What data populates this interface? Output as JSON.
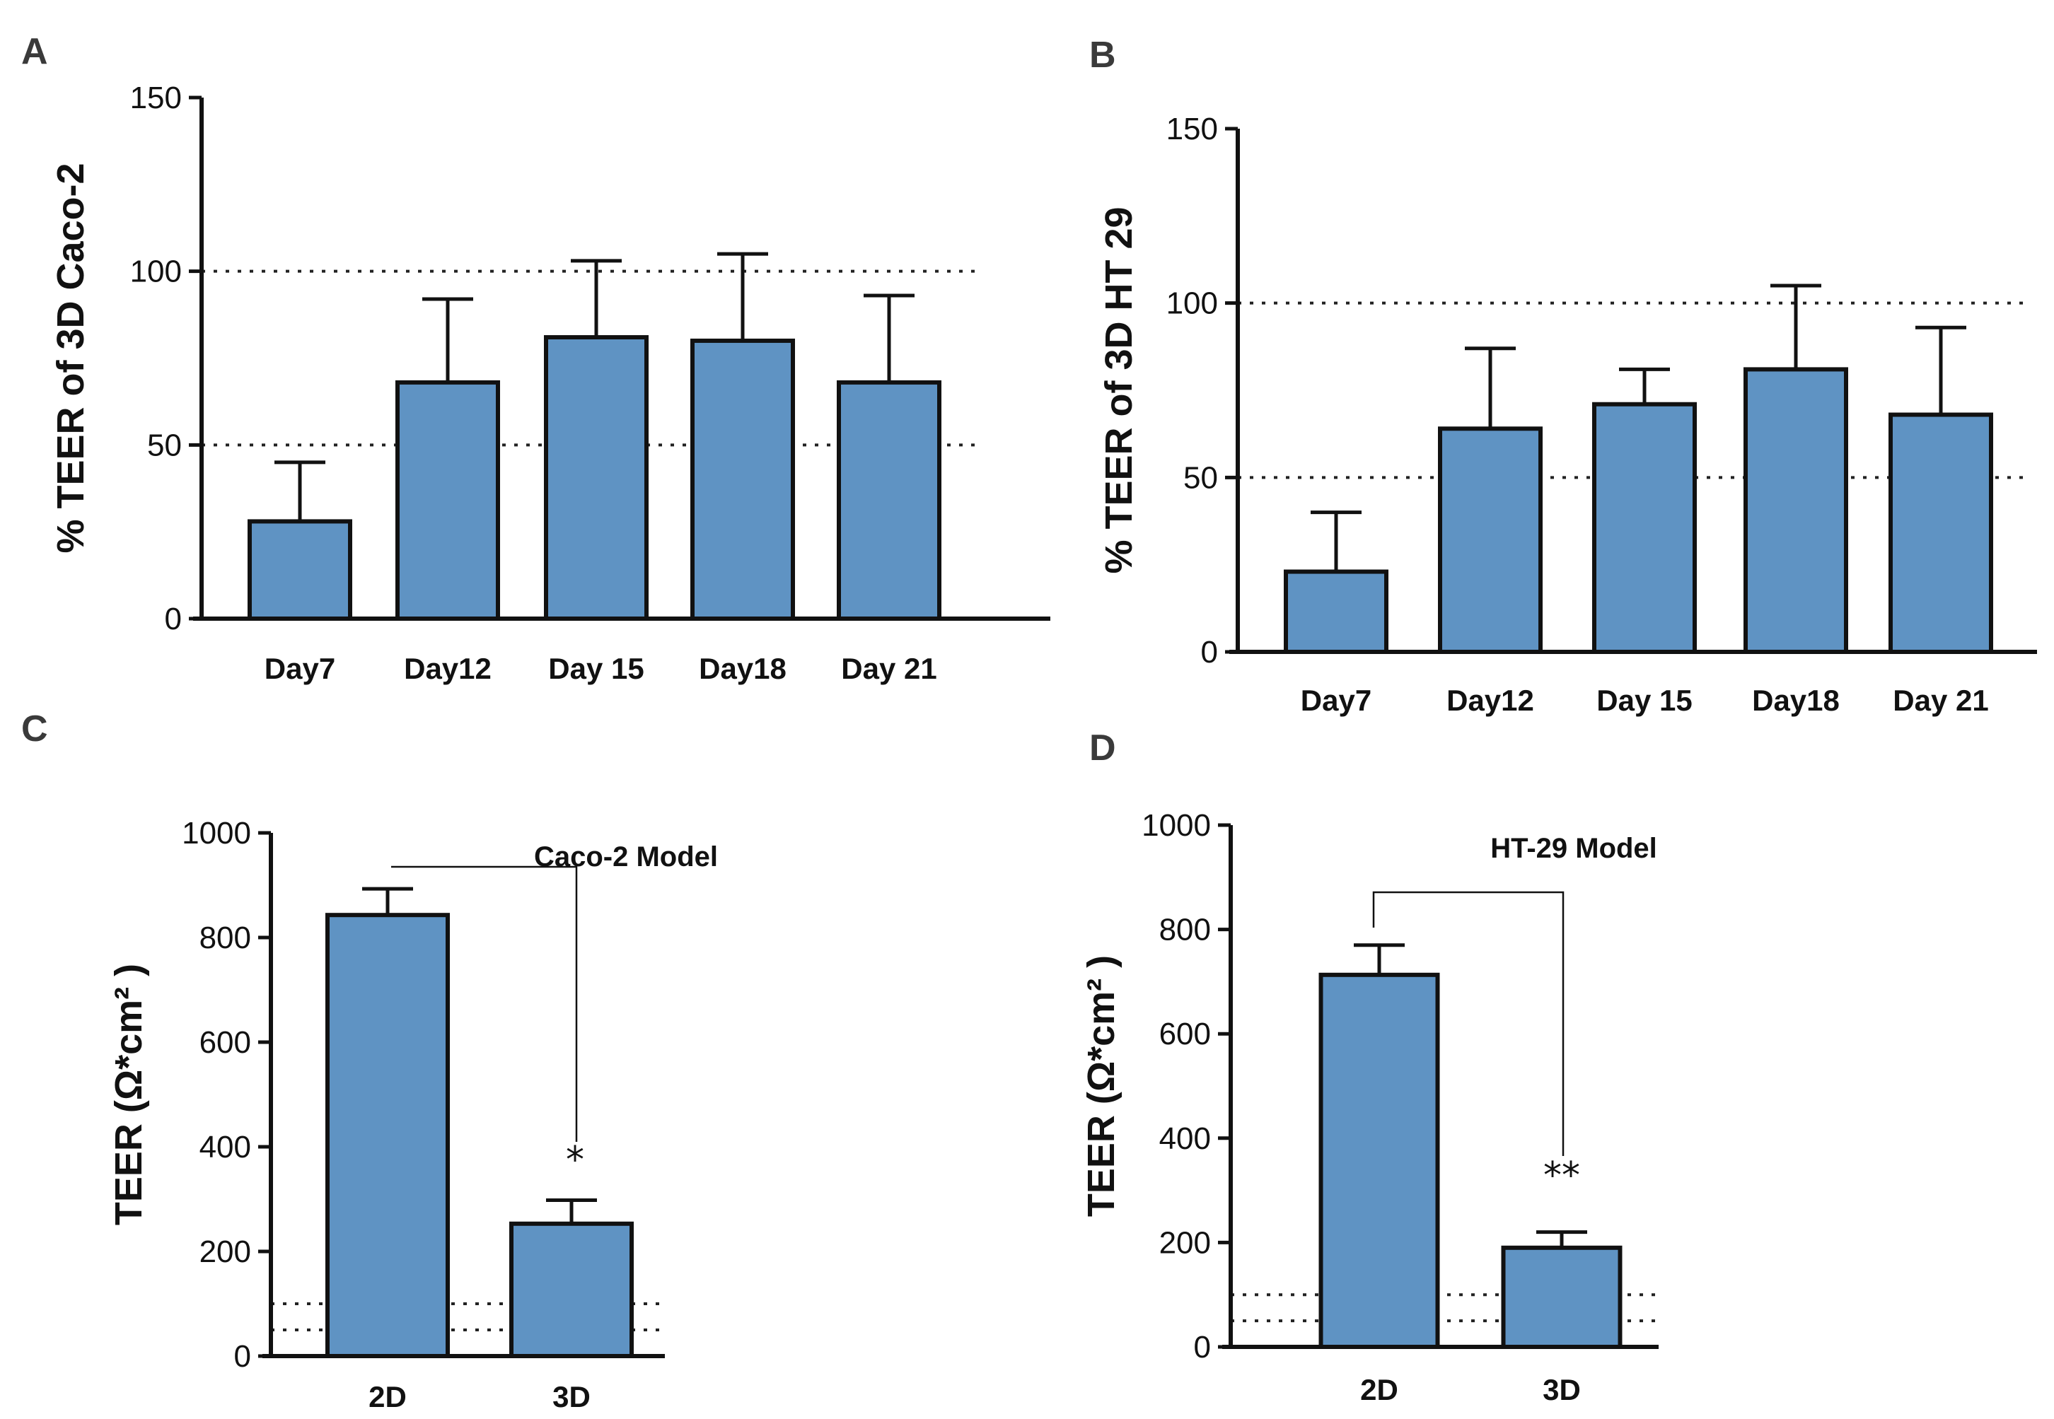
{
  "chart_data": [
    {
      "panel": "A",
      "type": "bar",
      "title": "",
      "xlabel": "",
      "ylabel": "% TEER of 3D Caco-2",
      "categories": [
        "Day7",
        "Day12",
        "Day 15",
        "Day18",
        "Day 21"
      ],
      "values": [
        28,
        68,
        81,
        80,
        68
      ],
      "errors": [
        17,
        24,
        22,
        25,
        25
      ],
      "ylim": [
        0,
        150
      ],
      "yticks": [
        0,
        50,
        100,
        150
      ],
      "reference_lines": [
        50,
        100
      ],
      "grid": false
    },
    {
      "panel": "B",
      "type": "bar",
      "title": "",
      "xlabel": "",
      "ylabel": "% TEER of 3D HT 29",
      "categories": [
        "Day7",
        "Day12",
        "Day 15",
        "Day18",
        "Day 21"
      ],
      "values": [
        23,
        64,
        71,
        81,
        68
      ],
      "errors": [
        17,
        23,
        10,
        24,
        25
      ],
      "ylim": [
        0,
        150
      ],
      "yticks": [
        0,
        50,
        100,
        150
      ],
      "reference_lines": [
        50,
        100
      ],
      "grid": false
    },
    {
      "panel": "C",
      "type": "bar",
      "title": "Caco-2 Model",
      "xlabel": "",
      "ylabel": "TEER (Ω*cm² )",
      "categories": [
        "2D",
        "3D"
      ],
      "values": [
        843,
        253
      ],
      "errors": [
        50,
        45
      ],
      "ylim": [
        0,
        1000
      ],
      "yticks": [
        0,
        200,
        400,
        600,
        800,
        1000
      ],
      "reference_lines": [
        50,
        100
      ],
      "significance": "*",
      "grid": false
    },
    {
      "panel": "D",
      "type": "bar",
      "title": "HT-29 Model",
      "xlabel": "",
      "ylabel": "TEER (Ω*cm² )",
      "categories": [
        "2D",
        "3D"
      ],
      "values": [
        713,
        190
      ],
      "errors": [
        57,
        30
      ],
      "ylim": [
        0,
        1000
      ],
      "yticks": [
        0,
        200,
        400,
        600,
        800,
        1000
      ],
      "reference_lines": [
        50,
        100
      ],
      "significance": "**",
      "grid": false
    }
  ]
}
